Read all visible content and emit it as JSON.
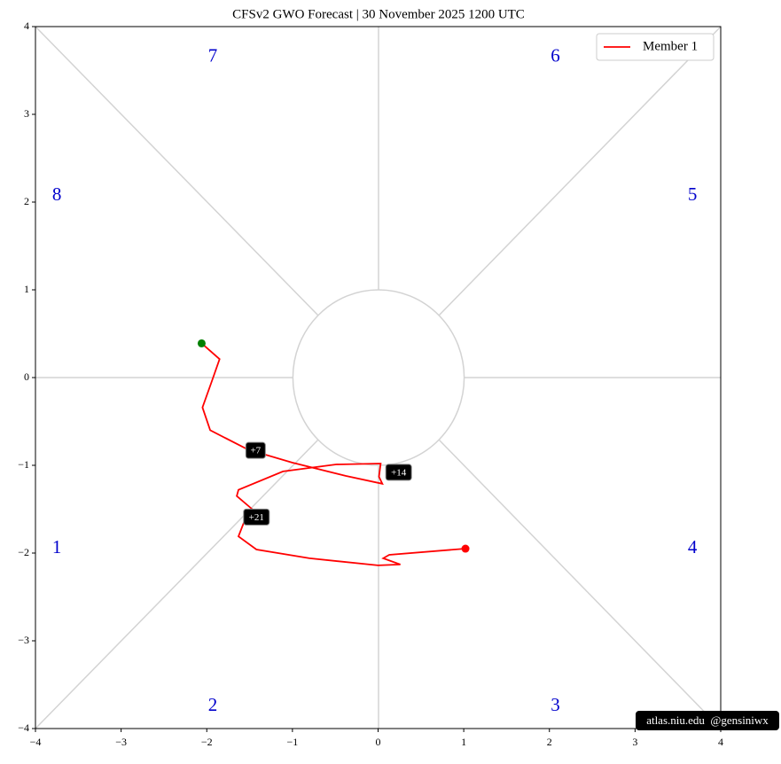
{
  "chart_data": {
    "type": "phase",
    "title": "CFSv2 GWO Forecast   |   30  November  2025 1200 UTC",
    "phases": [
      "1",
      "2",
      "3",
      "4",
      "5",
      "6",
      "7",
      "8"
    ],
    "series": [
      {
        "name": "Member 1",
        "color": "#ff0000",
        "start_color": "#008000",
        "x": [
          -2.06,
          -1.85,
          -1.94,
          -2.05,
          -1.96,
          -1.52,
          -1.0,
          -0.38,
          0.05,
          0.01,
          0.03,
          -0.49,
          -1.11,
          -1.63,
          -1.65,
          -1.47,
          -1.57,
          -1.63,
          -1.42,
          -0.8,
          0.0,
          0.26,
          0.06,
          0.13,
          1.02
        ],
        "y": [
          0.39,
          0.21,
          -0.04,
          -0.34,
          -0.6,
          -0.82,
          -0.97,
          -1.12,
          -1.21,
          -1.13,
          -0.98,
          -0.99,
          -1.07,
          -1.28,
          -1.35,
          -1.5,
          -1.66,
          -1.81,
          -1.96,
          -2.06,
          -2.14,
          -2.13,
          -2.06,
          -2.02,
          -1.95
        ]
      }
    ],
    "annotations": [
      {
        "text": "+7",
        "x": -1.43,
        "y": -0.83
      },
      {
        "text": "+14",
        "x": 0.24,
        "y": -1.08
      },
      {
        "text": "+21",
        "x": -1.42,
        "y": -1.59
      }
    ],
    "xlim": [
      -4,
      4
    ],
    "ylim": [
      -4,
      4
    ],
    "xticks": [
      {
        "value": -4,
        "label": "−4"
      },
      {
        "value": -3,
        "label": "−3"
      },
      {
        "value": -2,
        "label": "−2"
      },
      {
        "value": -1,
        "label": "−1"
      },
      0,
      1,
      2,
      3,
      4
    ],
    "yticks": [
      {
        "value": -4,
        "label": "−4"
      },
      {
        "value": -3,
        "label": "−3"
      },
      {
        "value": -2,
        "label": "−2"
      },
      {
        "value": -1,
        "label": "−1"
      },
      0,
      1,
      2,
      3,
      4
    ],
    "legend": "upper right",
    "watermark": "atlas.niu.edu  @gensiniwx"
  }
}
